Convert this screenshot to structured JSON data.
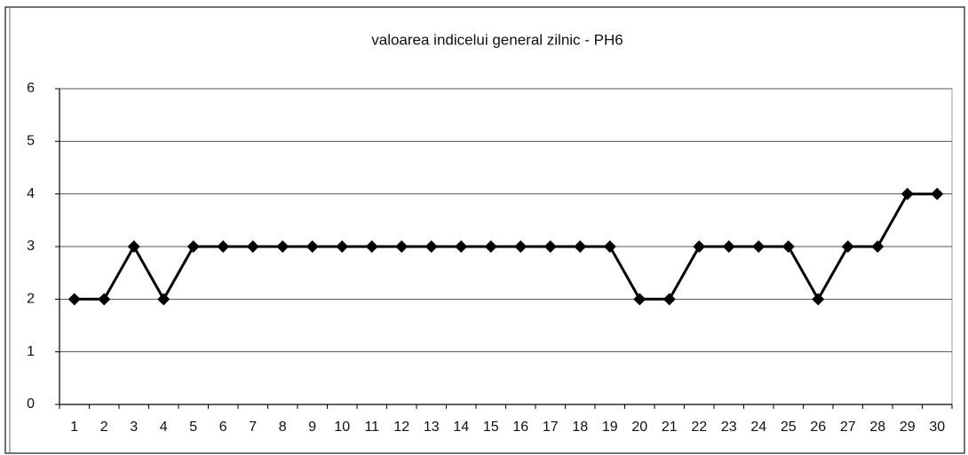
{
  "chart_data": {
    "type": "line",
    "title": "valoarea indicelui general zilnic - PH6",
    "categories": [
      "1",
      "2",
      "3",
      "4",
      "5",
      "6",
      "7",
      "8",
      "9",
      "10",
      "11",
      "12",
      "13",
      "14",
      "15",
      "16",
      "17",
      "18",
      "19",
      "20",
      "21",
      "22",
      "23",
      "24",
      "25",
      "26",
      "27",
      "28",
      "29",
      "30"
    ],
    "values": [
      2,
      2,
      3,
      2,
      3,
      3,
      3,
      3,
      3,
      3,
      3,
      3,
      3,
      3,
      3,
      3,
      3,
      3,
      3,
      2,
      2,
      3,
      3,
      3,
      3,
      2,
      3,
      3,
      4,
      4
    ],
    "color": "#000000",
    "ylim": [
      0,
      6
    ],
    "yticks": [
      0,
      1,
      2,
      3,
      4,
      5,
      6
    ],
    "grid": true
  }
}
